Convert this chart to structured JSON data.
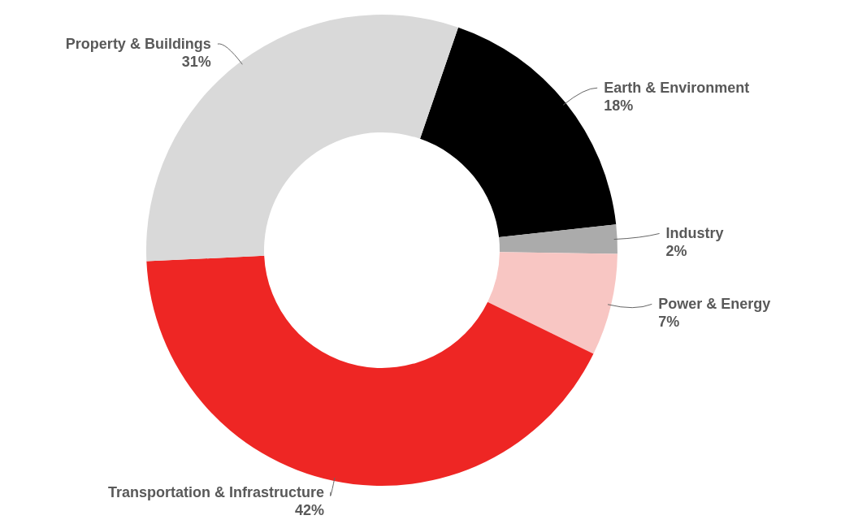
{
  "chart_data": {
    "type": "donut",
    "categories": [
      "Earth & Environment",
      "Industry",
      "Power & Energy",
      "Transportation & Infrastructure",
      "Property & Buildings"
    ],
    "values": [
      18,
      2,
      7,
      42,
      31
    ],
    "value_labels": [
      "18%",
      "2%",
      "7%",
      "42%",
      "31%"
    ],
    "colors": [
      "#000000",
      "#ababab",
      "#f8c6c3",
      "#ee2624",
      "#d9d9d9"
    ]
  }
}
